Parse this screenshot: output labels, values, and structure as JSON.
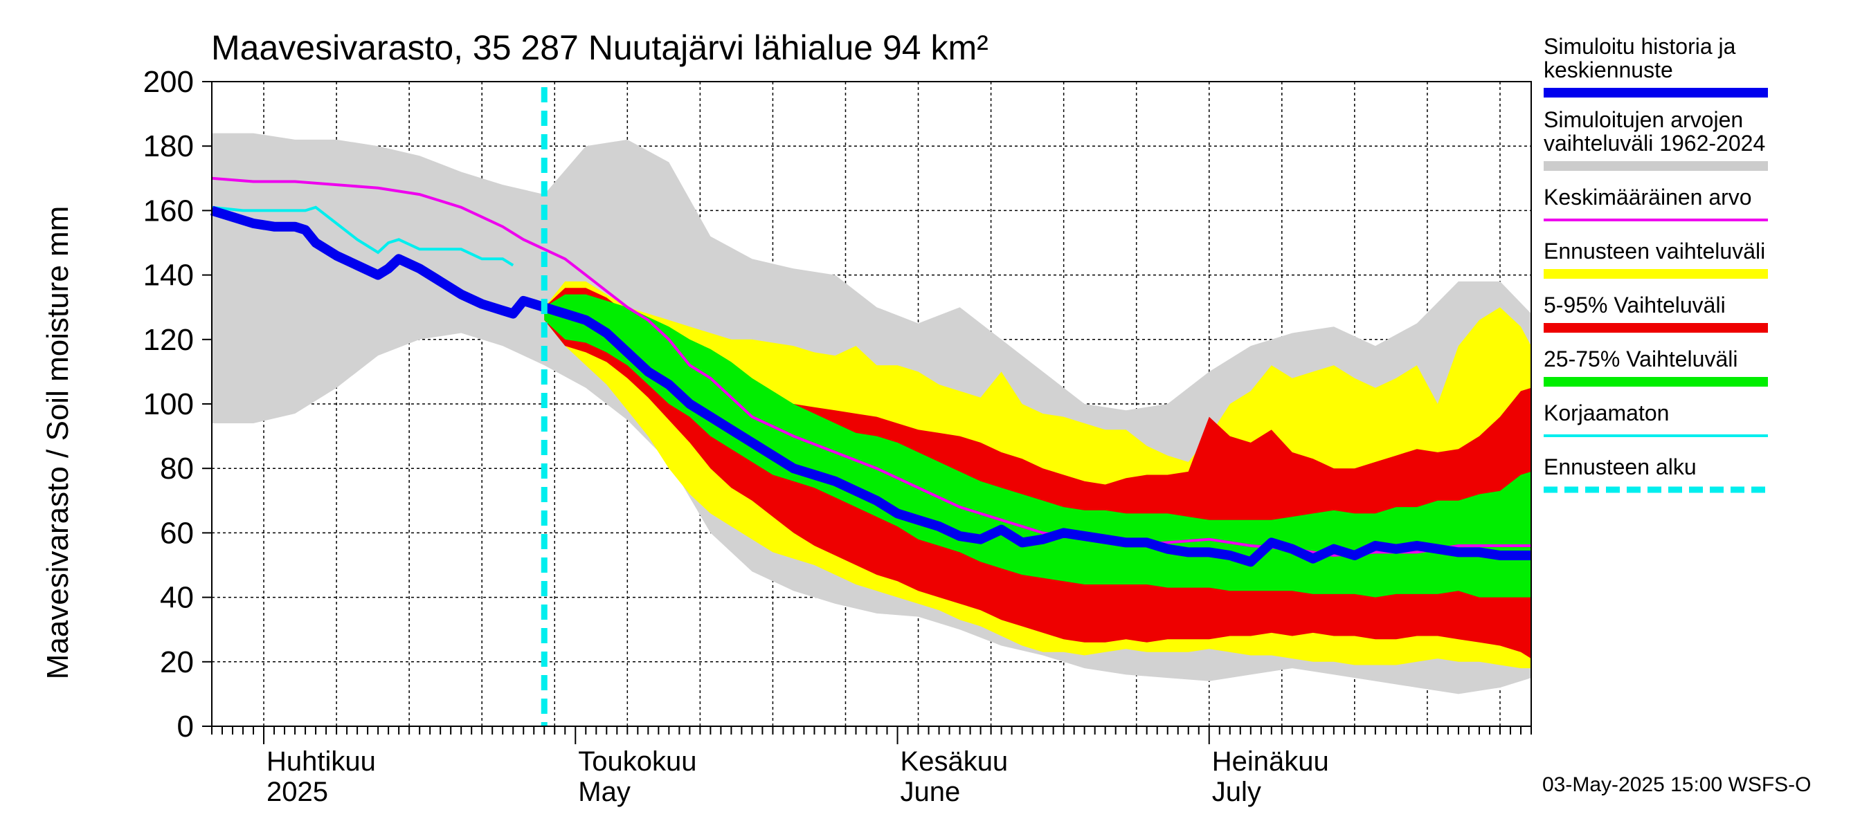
{
  "chart_data": {
    "type": "area",
    "title": "Maavesivarasto, 35 287 Nuutajärvi lähialue 94 km²",
    "ylabel": "Maavesivarasto / Soil moisture   mm",
    "ylim": [
      0,
      200
    ],
    "yticks": [
      0,
      20,
      40,
      60,
      80,
      100,
      120,
      140,
      160,
      180,
      200
    ],
    "x_range_days": [
      0,
      127
    ],
    "x_start_date": "2025-03-27",
    "forecast_start_day": 32,
    "months": [
      {
        "name_fi": "Huhtikuu",
        "name_en": "2025",
        "day": 5
      },
      {
        "name_fi": "Toukokuu",
        "name_en": "May",
        "day": 35
      },
      {
        "name_fi": "Kesäkuu",
        "name_en": "June",
        "day": 66
      },
      {
        "name_fi": "Heinäkuu",
        "name_en": "July",
        "day": 96
      }
    ],
    "footer": "03-May-2025 15:00 WSFS-O",
    "legend": [
      {
        "label": "Simuloitu historia ja keskiennuste",
        "color": "#0000ee",
        "style": "thick"
      },
      {
        "label": "Simuloitujen arvojen vaihteluväli 1962-2024",
        "color": "#cccccc",
        "style": "band"
      },
      {
        "label": "Keskimääräinen arvo",
        "color": "#ee00ee",
        "style": "line"
      },
      {
        "label": "Ennusteen vaihteluväli",
        "color": "#ffff00",
        "style": "band"
      },
      {
        "label": "5-95% Vaihteluväli",
        "color": "#ee0000",
        "style": "band"
      },
      {
        "label": "25-75% Vaihteluväli",
        "color": "#00ee00",
        "style": "band"
      },
      {
        "label": "Korjaamaton",
        "color": "#00eeee",
        "style": "line"
      },
      {
        "label": "Ennusteen alku",
        "color": "#00eeee",
        "style": "dashed"
      }
    ],
    "series": [
      {
        "name": "hist_range",
        "x": [
          0,
          4,
          8,
          12,
          16,
          20,
          24,
          28,
          32,
          36,
          40,
          44,
          48,
          52,
          56,
          60,
          64,
          68,
          72,
          76,
          80,
          84,
          88,
          92,
          96,
          100,
          104,
          108,
          112,
          116,
          120,
          124,
          127
        ],
        "low": [
          94,
          94,
          97,
          105,
          115,
          120,
          122,
          118,
          112,
          105,
          95,
          82,
          60,
          48,
          42,
          38,
          35,
          34,
          30,
          25,
          22,
          18,
          16,
          15,
          14,
          16,
          18,
          16,
          14,
          12,
          10,
          12,
          15
        ],
        "high": [
          184,
          184,
          182,
          182,
          180,
          177,
          172,
          168,
          165,
          180,
          182,
          175,
          152,
          145,
          142,
          140,
          130,
          125,
          130,
          120,
          110,
          100,
          98,
          100,
          110,
          118,
          122,
          124,
          118,
          125,
          138,
          138,
          128
        ]
      },
      {
        "name": "fc_range",
        "x": [
          32,
          34,
          36,
          38,
          40,
          42,
          44,
          46,
          48,
          50,
          52,
          54,
          56,
          58,
          60,
          62,
          64,
          66,
          68,
          70,
          72,
          74,
          76,
          78,
          80,
          82,
          84,
          86,
          88,
          90,
          92,
          94,
          96,
          98,
          100,
          102,
          104,
          106,
          108,
          110,
          112,
          114,
          116,
          118,
          120,
          122,
          124,
          126,
          127
        ],
        "low": [
          126,
          118,
          112,
          106,
          98,
          90,
          80,
          72,
          66,
          62,
          58,
          54,
          52,
          50,
          47,
          44,
          42,
          40,
          38,
          36,
          33,
          31,
          28,
          25,
          23,
          23,
          22,
          23,
          24,
          23,
          23,
          23,
          24,
          23,
          22,
          22,
          21,
          20,
          20,
          19,
          19,
          19,
          20,
          21,
          20,
          20,
          19,
          18,
          18
        ],
        "high": [
          130,
          138,
          138,
          134,
          130,
          128,
          126,
          124,
          122,
          120,
          120,
          119,
          118,
          116,
          115,
          118,
          112,
          112,
          110,
          106,
          104,
          102,
          110,
          100,
          97,
          96,
          94,
          92,
          92,
          87,
          84,
          82,
          90,
          100,
          104,
          112,
          108,
          110,
          112,
          108,
          105,
          108,
          112,
          100,
          118,
          126,
          130,
          124,
          118
        ]
      },
      {
        "name": "p5_95",
        "x": [
          32,
          34,
          36,
          38,
          40,
          42,
          44,
          46,
          48,
          50,
          52,
          54,
          56,
          58,
          60,
          62,
          64,
          66,
          68,
          70,
          72,
          74,
          76,
          78,
          80,
          82,
          84,
          86,
          88,
          90,
          92,
          94,
          96,
          98,
          100,
          102,
          104,
          106,
          108,
          110,
          112,
          114,
          116,
          118,
          120,
          122,
          124,
          126,
          127
        ],
        "low": [
          126,
          118,
          116,
          113,
          108,
          102,
          95,
          88,
          80,
          74,
          70,
          65,
          60,
          56,
          53,
          50,
          47,
          45,
          42,
          40,
          38,
          36,
          33,
          31,
          29,
          27,
          26,
          26,
          27,
          26,
          27,
          27,
          27,
          28,
          28,
          29,
          28,
          29,
          28,
          28,
          27,
          27,
          28,
          28,
          27,
          26,
          25,
          23,
          21
        ],
        "high": [
          130,
          136,
          136,
          133,
          128,
          124,
          120,
          117,
          112,
          108,
          105,
          102,
          100,
          99,
          98,
          97,
          96,
          94,
          92,
          91,
          90,
          88,
          85,
          83,
          80,
          78,
          76,
          75,
          77,
          78,
          78,
          79,
          96,
          90,
          88,
          92,
          85,
          83,
          80,
          80,
          82,
          84,
          86,
          85,
          86,
          90,
          96,
          104,
          105
        ]
      },
      {
        "name": "p25_75",
        "x": [
          32,
          34,
          36,
          38,
          40,
          42,
          44,
          46,
          48,
          50,
          52,
          54,
          56,
          58,
          60,
          62,
          64,
          66,
          68,
          70,
          72,
          74,
          76,
          78,
          80,
          82,
          84,
          86,
          88,
          90,
          92,
          94,
          96,
          98,
          100,
          102,
          104,
          106,
          108,
          110,
          112,
          114,
          116,
          118,
          120,
          122,
          124,
          126,
          127
        ],
        "low": [
          126,
          120,
          119,
          116,
          112,
          106,
          100,
          96,
          90,
          86,
          82,
          78,
          76,
          74,
          71,
          68,
          65,
          62,
          58,
          56,
          54,
          51,
          49,
          47,
          46,
          45,
          44,
          44,
          44,
          44,
          43,
          43,
          43,
          42,
          42,
          42,
          42,
          41,
          41,
          41,
          40,
          41,
          41,
          41,
          42,
          40,
          40,
          40,
          40
        ],
        "high": [
          130,
          134,
          134,
          132,
          130,
          127,
          124,
          120,
          117,
          113,
          108,
          104,
          100,
          97,
          94,
          91,
          90,
          88,
          85,
          82,
          79,
          76,
          74,
          72,
          70,
          68,
          67,
          67,
          66,
          66,
          66,
          65,
          64,
          64,
          64,
          64,
          65,
          66,
          67,
          66,
          66,
          68,
          68,
          70,
          70,
          72,
          73,
          78,
          79
        ]
      },
      {
        "name": "mean",
        "x": [
          0,
          4,
          8,
          12,
          16,
          20,
          24,
          26,
          28,
          30,
          32,
          34,
          36,
          38,
          40,
          42,
          44,
          46,
          48,
          50,
          52,
          56,
          60,
          64,
          68,
          72,
          76,
          80,
          84,
          88,
          92,
          96,
          100,
          104,
          108,
          112,
          116,
          120,
          124,
          127
        ],
        "values": [
          170,
          169,
          169,
          168,
          167,
          165,
          161,
          158,
          155,
          151,
          148,
          145,
          140,
          135,
          130,
          126,
          120,
          112,
          108,
          102,
          96,
          90,
          85,
          80,
          74,
          68,
          64,
          60,
          58,
          56,
          57,
          58,
          56,
          55,
          53,
          54,
          54,
          56,
          56,
          56
        ]
      },
      {
        "name": "uncorrected",
        "x": [
          0,
          3,
          6,
          9,
          10,
          12,
          14,
          16,
          17,
          18,
          20,
          22,
          24,
          26,
          28,
          29
        ],
        "values": [
          161,
          160,
          160,
          160,
          161,
          156,
          151,
          147,
          150,
          151,
          148,
          148,
          148,
          145,
          145,
          143
        ]
      },
      {
        "name": "history_mean",
        "x": [
          0,
          2,
          4,
          6,
          8,
          9,
          10,
          12,
          14,
          16,
          17,
          18,
          20,
          22,
          24,
          26,
          28,
          29,
          30,
          31,
          32,
          33,
          34,
          36,
          38,
          40,
          42,
          44,
          46,
          48,
          50,
          52,
          54,
          56,
          58,
          60,
          62,
          64,
          66,
          68,
          70,
          72,
          74,
          76,
          78,
          80,
          82,
          84,
          86,
          88,
          90,
          92,
          94,
          96,
          98,
          100,
          102,
          104,
          106,
          108,
          110,
          112,
          114,
          116,
          118,
          120,
          122,
          124,
          126,
          127
        ],
        "values": [
          160,
          158,
          156,
          155,
          155,
          154,
          150,
          146,
          143,
          140,
          142,
          145,
          142,
          138,
          134,
          131,
          129,
          128,
          132,
          131,
          130,
          129,
          128,
          126,
          122,
          116,
          110,
          106,
          100,
          96,
          92,
          88,
          84,
          80,
          78,
          76,
          73,
          70,
          66,
          64,
          62,
          59,
          58,
          61,
          57,
          58,
          60,
          59,
          58,
          57,
          57,
          55,
          54,
          54,
          53,
          51,
          57,
          55,
          52,
          55,
          53,
          56,
          55,
          56,
          55,
          54,
          54,
          53,
          53,
          53
        ]
      }
    ]
  }
}
